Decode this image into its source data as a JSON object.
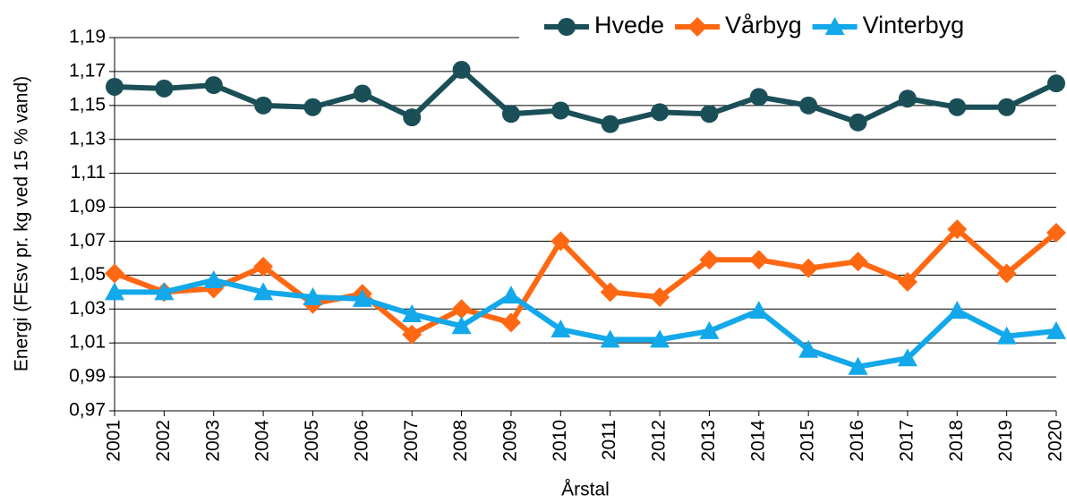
{
  "chart_data": {
    "type": "line",
    "x_label": "Årstal",
    "y_label": "Energi (FEsv pr. kg ved 15 % vand)",
    "categories": [
      "2001",
      "2002",
      "2003",
      "2004",
      "2005",
      "2006",
      "2007",
      "2008",
      "2009",
      "2010",
      "2011",
      "2012",
      "2013",
      "2014",
      "2015",
      "2016",
      "2017",
      "2018",
      "2019",
      "2020"
    ],
    "series": [
      {
        "name": "Hvede",
        "color": "#1b4f58",
        "marker": "circle",
        "values": [
          1.161,
          1.16,
          1.162,
          1.15,
          1.149,
          1.157,
          1.143,
          1.171,
          1.145,
          1.147,
          1.139,
          1.146,
          1.145,
          1.155,
          1.15,
          1.14,
          1.154,
          1.149,
          1.149,
          1.163
        ]
      },
      {
        "name": "Vårbyg",
        "color": "#ff6813",
        "marker": "diamond",
        "values": [
          1.051,
          1.04,
          1.042,
          1.055,
          1.033,
          1.039,
          1.015,
          1.03,
          1.022,
          1.07,
          1.04,
          1.037,
          1.059,
          1.059,
          1.054,
          1.058,
          1.046,
          1.077,
          1.051,
          1.075
        ]
      },
      {
        "name": "Vinterbyg",
        "color": "#13a8ea",
        "marker": "triangle",
        "values": [
          1.04,
          1.04,
          1.047,
          1.04,
          1.037,
          1.036,
          1.027,
          1.02,
          1.038,
          1.018,
          1.012,
          1.012,
          1.017,
          1.029,
          1.006,
          0.996,
          1.001,
          1.029,
          1.014,
          1.017
        ]
      }
    ],
    "ylim": [
      0.97,
      1.19
    ],
    "yticks": [
      {
        "value": 0.97,
        "label": "0,97"
      },
      {
        "value": 0.99,
        "label": "0,99"
      },
      {
        "value": 1.01,
        "label": "1,01"
      },
      {
        "value": 1.03,
        "label": "1,03"
      },
      {
        "value": 1.05,
        "label": "1,05"
      },
      {
        "value": 1.07,
        "label": "1,07"
      },
      {
        "value": 1.09,
        "label": "1,09"
      },
      {
        "value": 1.11,
        "label": "1,11"
      },
      {
        "value": 1.13,
        "label": "1,13"
      },
      {
        "value": 1.15,
        "label": "1,15"
      },
      {
        "value": 1.17,
        "label": "1,17"
      },
      {
        "value": 1.19,
        "label": "1,19"
      }
    ],
    "grid": true,
    "legend": "top-right"
  }
}
